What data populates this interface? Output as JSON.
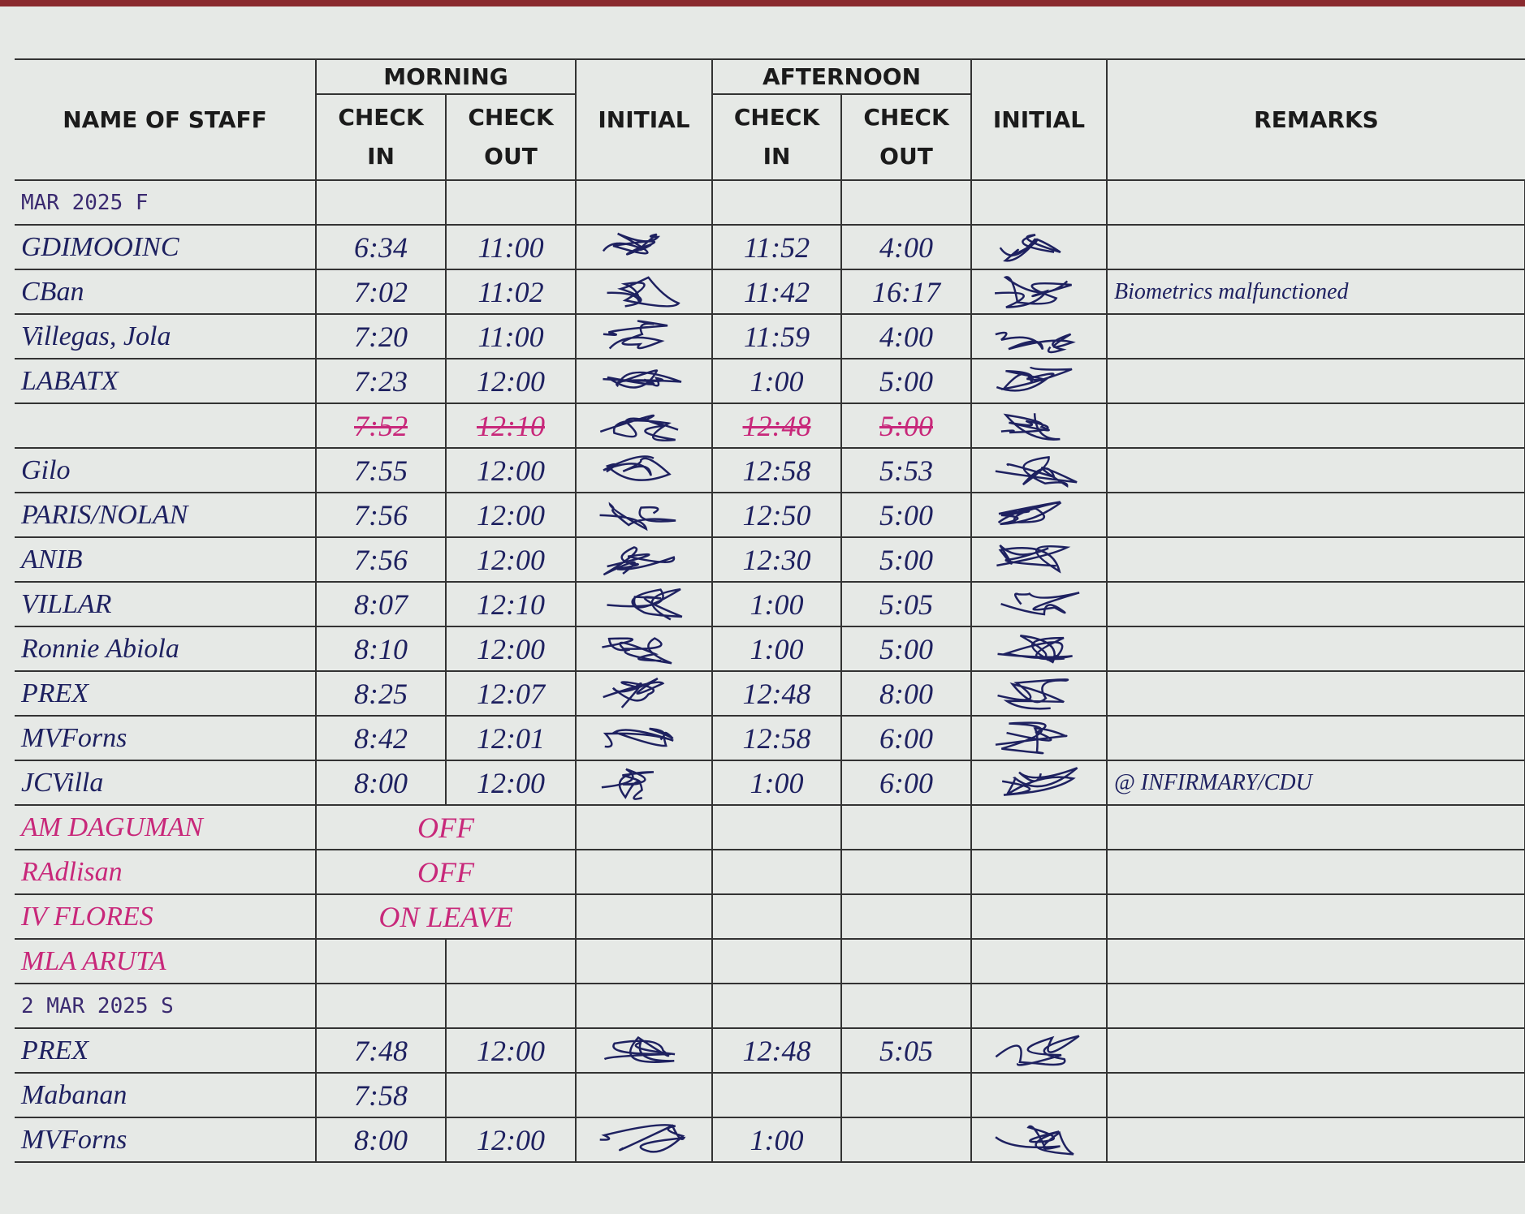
{
  "header": {
    "name": "NAME OF STAFF",
    "morning": "MORNING",
    "afternoon": "AFTERNOON",
    "check_in": "CHECK IN",
    "check_out": "CHECK OUT",
    "initial": "INITIAL",
    "remarks": "REMARKS"
  },
  "sections": [
    {
      "date": "MAR 2025 F",
      "rows": [
        {
          "name": "GDIMOOINC",
          "am_in": "6:34",
          "am_out": "11:00",
          "pm_in": "11:52",
          "pm_out": "4:00"
        },
        {
          "name": "CBan",
          "am_in": "7:02",
          "am_out": "11:02",
          "pm_in": "11:42",
          "pm_out": "16:17",
          "remarks": "Biometrics malfunctioned"
        },
        {
          "name": "Villegas, Jola",
          "am_in": "7:20",
          "am_out": "11:00",
          "pm_in": "11:59",
          "pm_out": "4:00"
        },
        {
          "name": "LABATX",
          "am_in": "7:23",
          "am_out": "12:00",
          "pm_in": "1:00",
          "pm_out": "5:00"
        },
        {
          "am_in": "7:52",
          "am_out": "12:10",
          "pm_in": "12:48",
          "pm_out": "5:00",
          "crossed": true
        },
        {
          "name": "Gilo",
          "am_in": "7:55",
          "am_out": "12:00",
          "pm_in": "12:58",
          "pm_out": "5:53"
        },
        {
          "name": "PARIS/NOLAN",
          "am_in": "7:56",
          "am_out": "12:00",
          "pm_in": "12:50",
          "pm_out": "5:00"
        },
        {
          "name": "ANIB",
          "am_in": "7:56",
          "am_out": "12:00",
          "pm_in": "12:30",
          "pm_out": "5:00"
        },
        {
          "name": "VILLAR",
          "am_in": "8:07",
          "am_out": "12:10",
          "pm_in": "1:00",
          "pm_out": "5:05"
        },
        {
          "name": "Ronnie Abiola",
          "am_in": "8:10",
          "am_out": "12:00",
          "pm_in": "1:00",
          "pm_out": "5:00"
        },
        {
          "name": "PREX",
          "am_in": "8:25",
          "am_out": "12:07",
          "pm_in": "12:48",
          "pm_out": "8:00"
        },
        {
          "name": "MVForns",
          "am_in": "8:42",
          "am_out": "12:01",
          "pm_in": "12:58",
          "pm_out": "6:00"
        },
        {
          "name": "JCVilla",
          "am_in": "8:00",
          "am_out": "12:00",
          "pm_in": "1:00",
          "pm_out": "6:00",
          "remarks": "@ INFIRMARY/CDU"
        },
        {
          "name": "AM DAGUMAN",
          "status": "OFF",
          "ink": "#c8287a"
        },
        {
          "name": "RAdlisan",
          "status": "OFF",
          "ink": "#c8287a"
        },
        {
          "name": "IV FLORES",
          "status": "ON LEAVE",
          "ink": "#c8287a"
        },
        {
          "name": "MLA ARUTA",
          "ink": "#c8287a"
        }
      ]
    },
    {
      "date": "2 MAR 2025 S",
      "rows": [
        {
          "name": "PREX",
          "am_in": "7:48",
          "am_out": "12:00",
          "pm_in": "12:48",
          "pm_out": "5:05"
        },
        {
          "name": "Mabanan",
          "am_in": "7:58"
        },
        {
          "name": "MVForns",
          "am_in": "8:00",
          "am_out": "12:00",
          "pm_in": "1:00"
        }
      ]
    }
  ]
}
